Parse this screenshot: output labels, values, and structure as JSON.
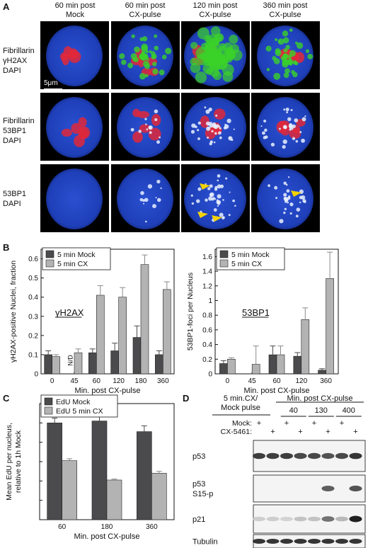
{
  "panels": {
    "A": "A",
    "B": "B",
    "C": "C",
    "D": "D"
  },
  "panel_a": {
    "columns": [
      {
        "line1": "60 min post",
        "line2": "Mock"
      },
      {
        "line1": "60 min post",
        "line2": "CX-pulse"
      },
      {
        "line1": "120 min post",
        "line2": "CX-pulse"
      },
      {
        "line1": "360  min  post",
        "line2": "CX-pulse"
      }
    ],
    "rows": [
      {
        "lines": [
          "Fibrillarin",
          "γH2AX",
          "DAPI"
        ]
      },
      {
        "lines": [
          "Fibrillarin",
          "53BP1",
          "DAPI"
        ]
      },
      {
        "lines": [
          "53BP1",
          "DAPI"
        ]
      }
    ],
    "scale_bar": "5μm"
  },
  "chart_data": [
    {
      "type": "bar",
      "panel": "B",
      "inset_label": "γH2AX",
      "categories": [
        "0",
        "45",
        "60",
        "120",
        "180",
        "360"
      ],
      "series": [
        {
          "name": "5 min Mock",
          "values": [
            0.1,
            null,
            0.11,
            0.12,
            0.19,
            0.1
          ],
          "errors": [
            0.02,
            null,
            0.02,
            0.04,
            0.06,
            0.02
          ]
        },
        {
          "name": "5 min CX",
          "values": [
            0.09,
            0.11,
            0.41,
            0.4,
            0.57,
            0.44
          ],
          "errors": [
            0.01,
            0.02,
            0.05,
            0.05,
            0.05,
            0.04
          ]
        }
      ],
      "nd_label": "N/D",
      "xlabel": "Min. post CX-pulse",
      "ylabel": "γH2AX-positive Nuclei, fraction",
      "ylim": [
        0,
        0.65
      ],
      "yticks": [
        "0",
        "0.1",
        "0.2",
        "0.3",
        "0.4",
        "0.5",
        "0.6"
      ],
      "legend": "top-left"
    },
    {
      "type": "bar",
      "panel": "B",
      "inset_label": "53BP1",
      "categories": [
        "0",
        "45",
        "60",
        "120",
        "360"
      ],
      "series": [
        {
          "name": "5 min Mock",
          "values": [
            0.14,
            null,
            0.26,
            0.24,
            0.05
          ],
          "errors": [
            0.04,
            null,
            0.12,
            0.05,
            0.02
          ]
        },
        {
          "name": "5 min CX",
          "values": [
            0.2,
            0.13,
            0.26,
            0.74,
            1.3
          ],
          "errors": [
            0.02,
            0.25,
            0.12,
            0.16,
            0.36
          ]
        }
      ],
      "xlabel": "Min. post CX-pulse",
      "ylabel": "53BP1-foci per Nucleus",
      "ylim": [
        0,
        1.7
      ],
      "yticks": [
        "0",
        "0.2",
        "0.4",
        "0.6",
        "0.8",
        "1",
        "1.2",
        "1.4",
        "1.6"
      ],
      "legend": "top-left"
    },
    {
      "type": "bar",
      "panel": "C",
      "categories": [
        "60",
        "180",
        "360"
      ],
      "series": [
        {
          "name": "EdU Mock",
          "values": [
            1.0,
            1.02,
            0.91
          ],
          "errors": [
            0.05,
            0.05,
            0.06
          ]
        },
        {
          "name": "EdU 5 min CX",
          "values": [
            0.61,
            0.41,
            0.48
          ],
          "errors": [
            0.02,
            0.01,
            0.02
          ]
        }
      ],
      "xlabel": "Min. post CX-pulse",
      "ylabel": "Mean EdU per nucleus, relative to 1h Mock",
      "ylim": [
        0,
        1.2
      ],
      "legend": "top-left"
    }
  ],
  "panel_d": {
    "header_left_1": "5 min.CX/",
    "header_left_2": "Mock pulse",
    "header_right": "Min. post CX-pulse",
    "timepoints": [
      "40",
      "130",
      "400"
    ],
    "treat_rows": [
      {
        "label": "Mock:",
        "signs": [
          "+",
          "",
          "+",
          "",
          "+",
          "",
          "+",
          ""
        ]
      },
      {
        "label": "CX-5461:",
        "signs": [
          "",
          "+",
          "",
          "+",
          "",
          "+",
          "",
          "+"
        ]
      }
    ],
    "blots": [
      {
        "label": "p53",
        "intensity": [
          0.85,
          0.85,
          0.85,
          0.8,
          0.8,
          0.75,
          0.8,
          0.9
        ]
      },
      {
        "label": "p53 S15-p",
        "intensity": [
          0,
          0,
          0,
          0,
          0,
          0.7,
          0,
          0.75
        ]
      },
      {
        "label": "p21",
        "intensity": [
          0.15,
          0.15,
          0.12,
          0.2,
          0.2,
          0.6,
          0.25,
          1.0
        ]
      },
      {
        "label": "Tubulin",
        "intensity": [
          0.9,
          0.9,
          0.9,
          0.9,
          0.9,
          0.9,
          0.9,
          0.9
        ]
      }
    ]
  },
  "colors": {
    "dark_bar": "#4b4b4d",
    "light_bar": "#b3b3b3",
    "dapi": "#1e3fb8",
    "fibrillarin": "#e0283a",
    "gh2ax": "#3ad12a",
    "bp53": "#e8f0ff",
    "arrow": "#f2d200"
  }
}
